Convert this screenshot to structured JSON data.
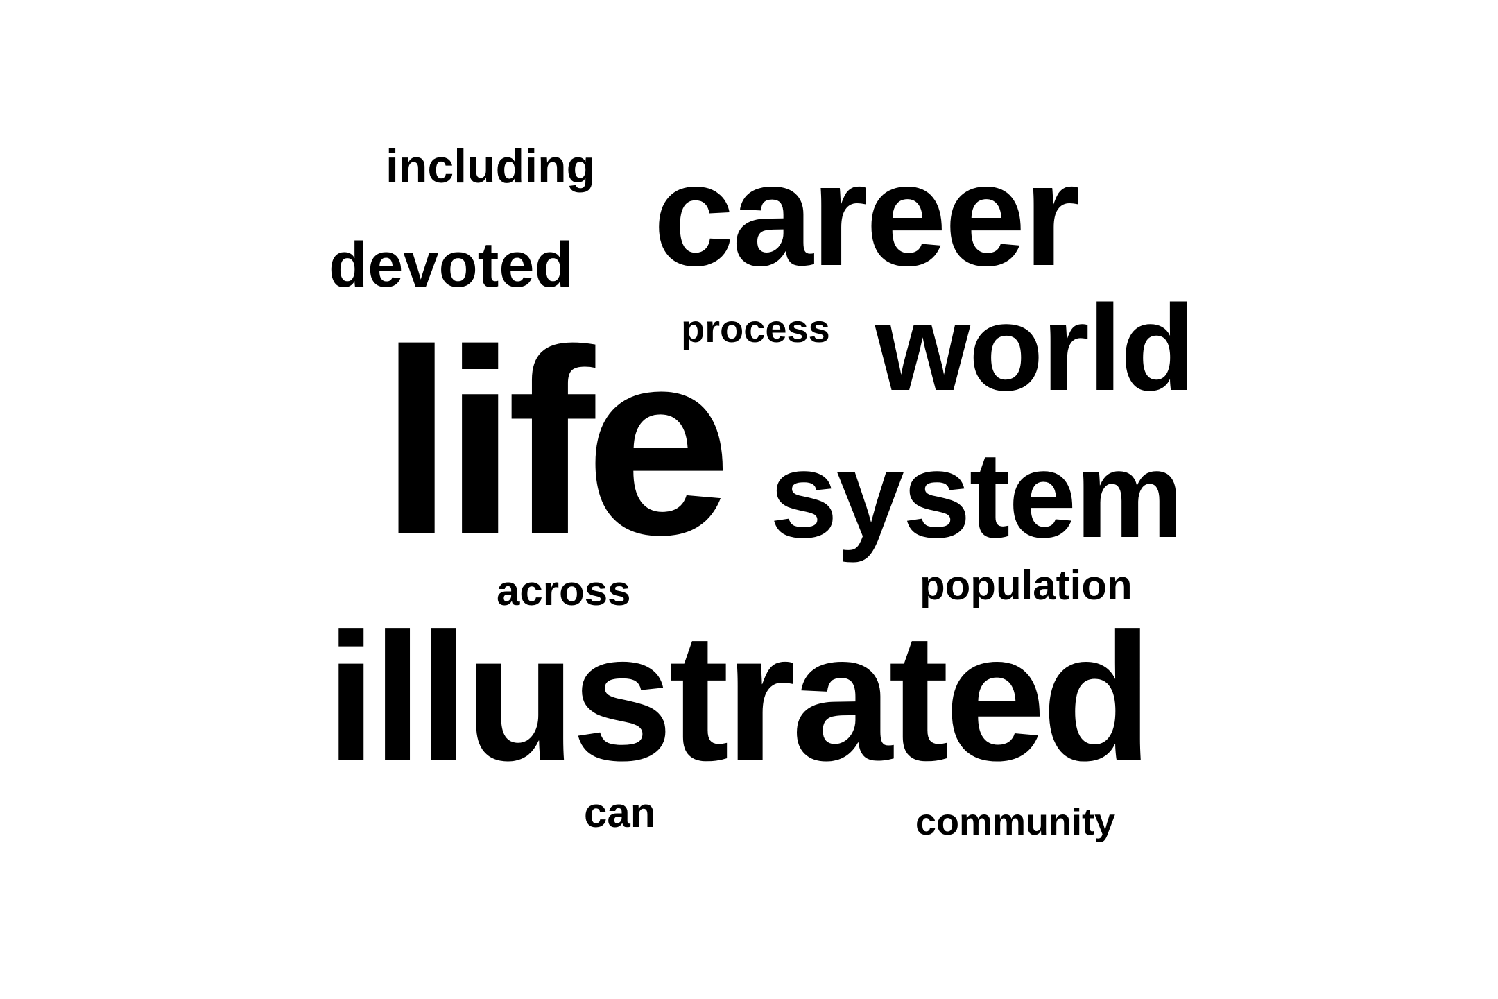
{
  "word_cloud": {
    "words": [
      {
        "id": "including",
        "text": "including"
      },
      {
        "id": "career",
        "text": "career"
      },
      {
        "id": "devoted",
        "text": "devoted"
      },
      {
        "id": "process",
        "text": "process"
      },
      {
        "id": "world",
        "text": "world"
      },
      {
        "id": "life",
        "text": "life"
      },
      {
        "id": "system",
        "text": "system"
      },
      {
        "id": "across",
        "text": "across"
      },
      {
        "id": "population",
        "text": "population"
      },
      {
        "id": "illustrated",
        "text": "illustrated"
      },
      {
        "id": "can",
        "text": "can"
      },
      {
        "id": "community",
        "text": "community"
      }
    ],
    "text_color": "#000000",
    "background_color": "#ffffff"
  }
}
